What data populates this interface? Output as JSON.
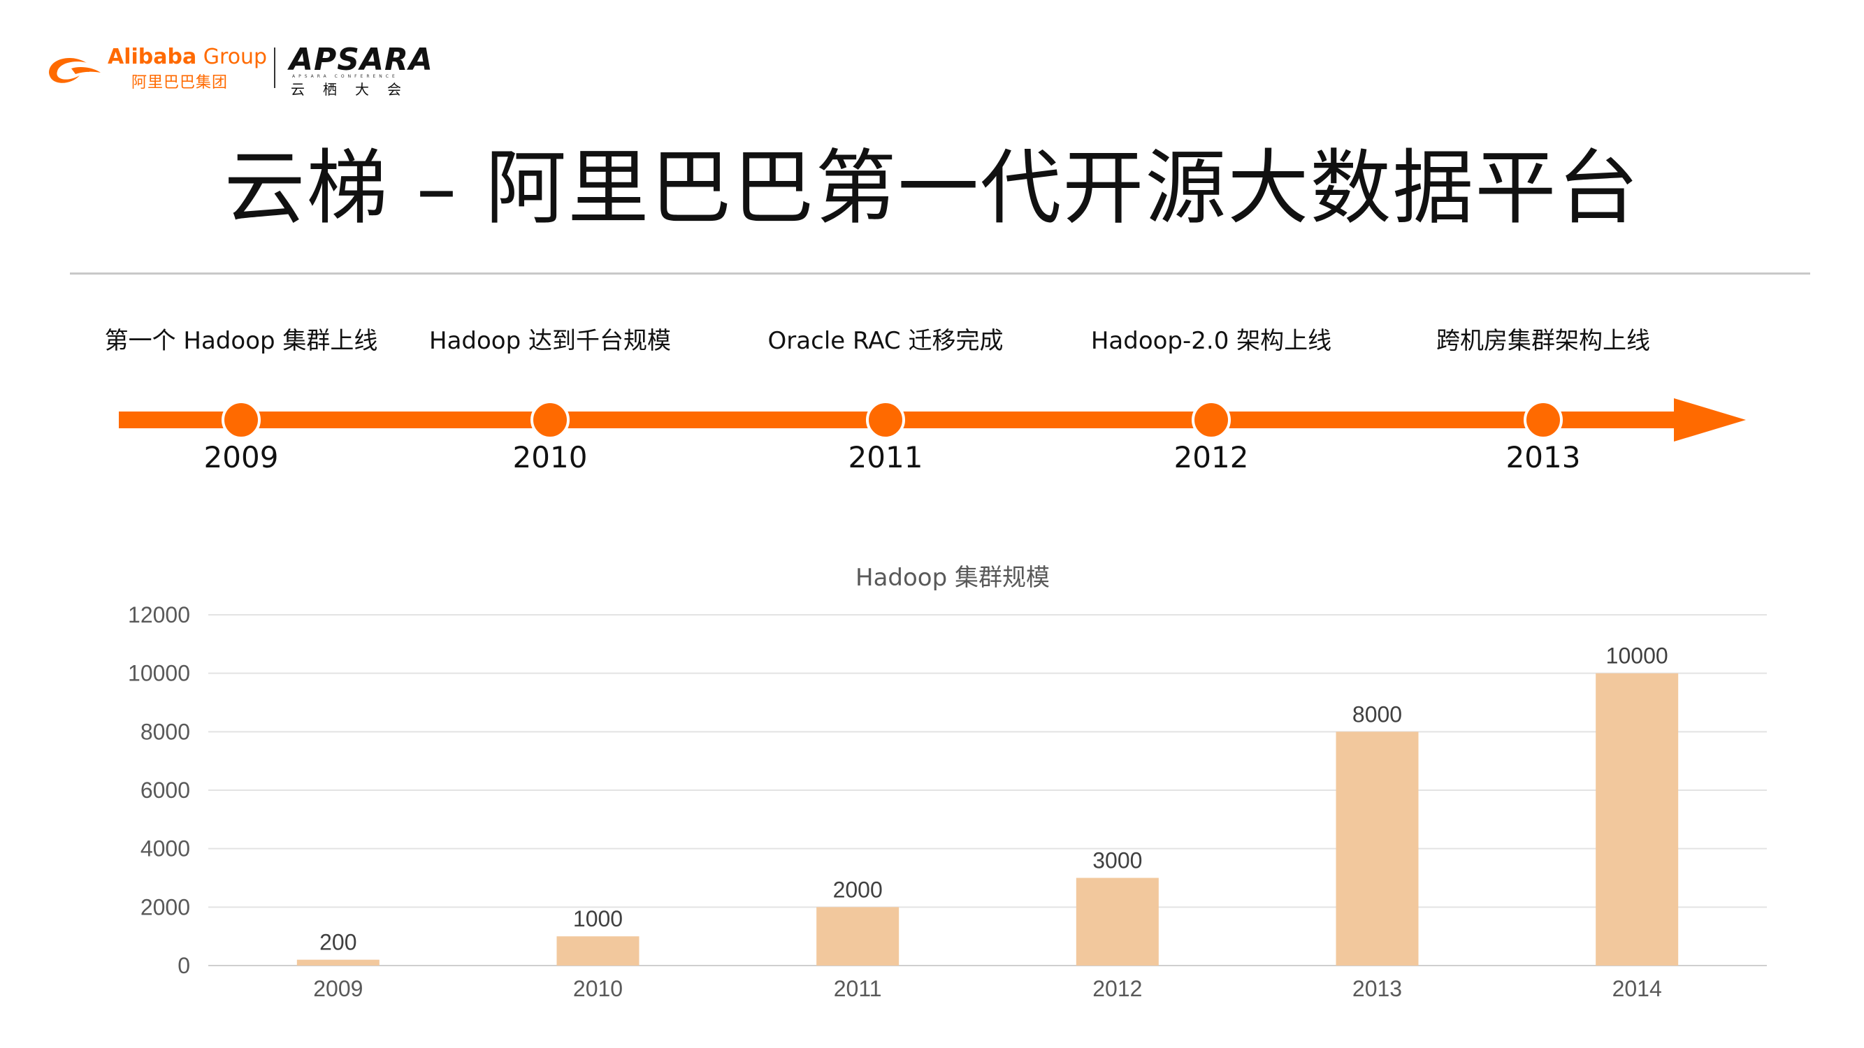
{
  "header": {
    "brand_en_bold": "Alibaba",
    "brand_en_light": " Group",
    "brand_cn": "阿里巴巴集团",
    "conference_name": "APSARA",
    "conference_sub": "APSARA CONFERENCE",
    "conference_cn": "云栖大会"
  },
  "title": "云梯 – 阿里巴巴第一代开源大数据平台",
  "timeline": {
    "milestones": [
      {
        "label": "第一个 Hadoop 集群上线",
        "year": "2009"
      },
      {
        "label": "Hadoop 达到千台规模",
        "year": "2010"
      },
      {
        "label": "Oracle RAC 迁移完成",
        "year": "2011"
      },
      {
        "label": "Hadoop-2.0 架构上线",
        "year": "2012"
      },
      {
        "label": "跨机房集群架构上线",
        "year": "2013"
      }
    ],
    "color": "#ff6a00"
  },
  "chart_data": {
    "type": "bar",
    "title": "Hadoop 集群规模",
    "categories": [
      "2009",
      "2010",
      "2011",
      "2012",
      "2013",
      "2014"
    ],
    "values": [
      200,
      1000,
      2000,
      3000,
      8000,
      10000
    ],
    "data_labels": [
      "200",
      "1000",
      "2000",
      "3000",
      "8000",
      "10000"
    ],
    "ylim": [
      0,
      12000
    ],
    "yticks": [
      "0",
      "2000",
      "4000",
      "6000",
      "8000",
      "10000",
      "12000"
    ],
    "grid": true,
    "legend": "none",
    "bar_color": "#f2c89d"
  }
}
